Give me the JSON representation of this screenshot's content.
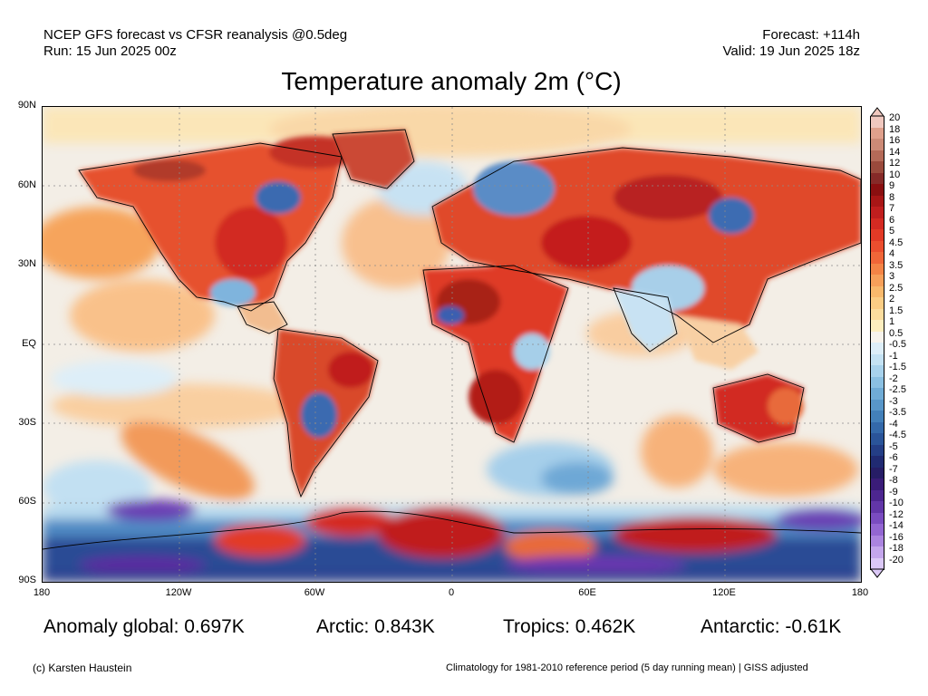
{
  "header": {
    "source_line": "NCEP GFS forecast vs CFSR reanalysis @0.5deg",
    "run_line": "Run: 15 Jun 2025 00z",
    "forecast_line": "Forecast: +114h",
    "valid_line": "Valid: 19 Jun 2025 18z"
  },
  "title": "Temperature anomaly 2m (°C)",
  "map": {
    "lat_labels": [
      "90N",
      "60N",
      "30N",
      "EQ",
      "30S",
      "60S",
      "90S"
    ],
    "lon_labels": [
      "180",
      "120W",
      "60W",
      "0",
      "60E",
      "120E",
      "180"
    ]
  },
  "colorbar": {
    "labels": [
      "20",
      "18",
      "16",
      "14",
      "12",
      "10",
      "9",
      "8",
      "7",
      "6",
      "5",
      "4.5",
      "4",
      "3.5",
      "3",
      "2.5",
      "2",
      "1.5",
      "1",
      "0.5",
      "-0.5",
      "-1",
      "-1.5",
      "-2",
      "-2.5",
      "-3",
      "-3.5",
      "-4",
      "-4.5",
      "-5",
      "-6",
      "-7",
      "-8",
      "-9",
      "-10",
      "-12",
      "-14",
      "-16",
      "-18",
      "-20"
    ],
    "colors": [
      "#f0c8bf",
      "#dfa08c",
      "#cc8a76",
      "#b46a58",
      "#9a4a3c",
      "#862a28",
      "#8a0f10",
      "#a81616",
      "#c01e1e",
      "#d42a22",
      "#e23a26",
      "#eb4e2e",
      "#f06638",
      "#f48446",
      "#f7a05a",
      "#f9b96c",
      "#fbcd84",
      "#fcdd9e",
      "#fdeebf",
      "#f7f3ec",
      "#ddeef8",
      "#c4e2f3",
      "#a8d2ec",
      "#8bc0e2",
      "#70acd6",
      "#5896c9",
      "#4380ba",
      "#3469aa",
      "#2a5499",
      "#243e86",
      "#202a72",
      "#261d66",
      "#3a1c78",
      "#4d2690",
      "#6236a8",
      "#7a4cc0",
      "#9366d2",
      "#ab84e0",
      "#c4a6ec",
      "#dbc8f6"
    ]
  },
  "stats": {
    "global": "Anomaly global: 0.697K",
    "arctic": "Arctic: 0.843K",
    "tropics": "Tropics: 0.462K",
    "antarctic": "Antarctic: -0.61K"
  },
  "footer": {
    "credit": "(c) Karsten Haustein",
    "climatology": "Climatology for 1981-2010 reference period (5 day running mean) | GISS adjusted"
  }
}
